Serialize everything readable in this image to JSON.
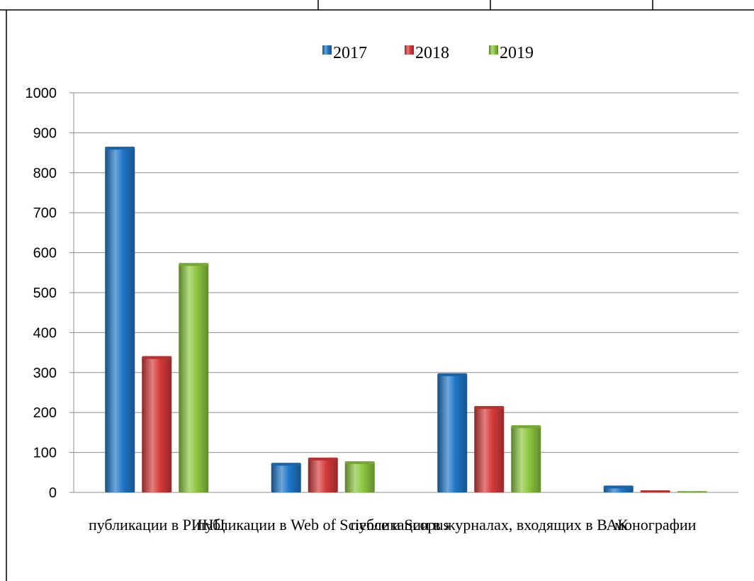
{
  "colors": {
    "2017": "#1f77c8",
    "2018": "#d63a3a",
    "2019": "#8cc63f"
  },
  "chart_data": {
    "type": "bar",
    "categories": [
      "публикации в РИНЦ",
      "публикации в Web of Science и Scopus",
      "публикации в журналах, входящих в ВАК",
      "монографии"
    ],
    "series": [
      {
        "name": "2017",
        "values": [
          865,
          74,
          298,
          17
        ]
      },
      {
        "name": "2018",
        "values": [
          341,
          87,
          216,
          5
        ]
      },
      {
        "name": "2019",
        "values": [
          574,
          78,
          168,
          3
        ]
      }
    ],
    "yticks": [
      "0",
      "100",
      "200",
      "300",
      "400",
      "500",
      "600",
      "700",
      "800",
      "900",
      "1000"
    ],
    "ylim": [
      0,
      1000
    ],
    "grid": true,
    "legend_position": "top-center",
    "title": "",
    "xlabel": "",
    "ylabel": ""
  }
}
